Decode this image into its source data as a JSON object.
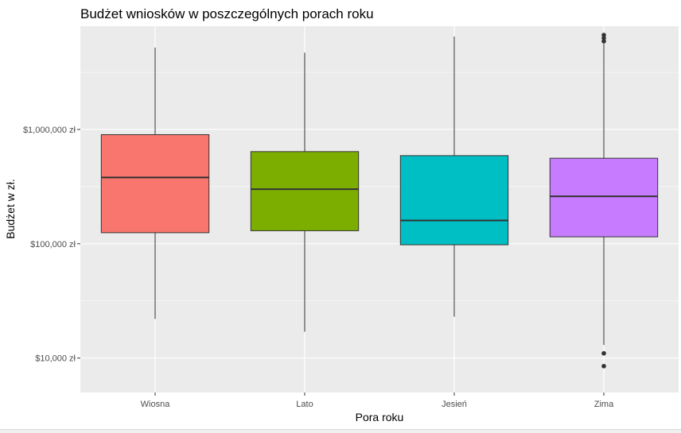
{
  "chart_data": {
    "type": "box",
    "title": "Budżet wniosków w poszczególnych porach roku",
    "xlabel": "Pora roku",
    "ylabel": "Budżet w zł.",
    "y_scale": "log10",
    "ylim": [
      5000,
      8000000
    ],
    "y_ticks": [
      {
        "value": 10000,
        "label": "$10,000 zł"
      },
      {
        "value": 100000,
        "label": "$100,000 zł"
      },
      {
        "value": 1000000,
        "label": "$1,000,000 zł"
      }
    ],
    "grid": true,
    "legend": "none",
    "categories": [
      "Wiosna",
      "Lato",
      "Jesień",
      "Zima"
    ],
    "boxes": [
      {
        "category": "Wiosna",
        "color": "#F8766D",
        "whisker_low": 22000,
        "q1": 125000,
        "median": 380000,
        "q3": 900000,
        "whisker_high": 5200000,
        "outliers": []
      },
      {
        "category": "Lato",
        "color": "#7CAE00",
        "whisker_low": 17000,
        "q1": 130000,
        "median": 300000,
        "q3": 640000,
        "whisker_high": 4700000,
        "outliers": []
      },
      {
        "category": "Jesień",
        "color": "#00BFC4",
        "whisker_low": 23000,
        "q1": 98000,
        "median": 160000,
        "q3": 590000,
        "whisker_high": 6500000,
        "outliers": []
      },
      {
        "category": "Zima",
        "color": "#C77CFF",
        "whisker_low": 13000,
        "q1": 115000,
        "median": 260000,
        "q3": 560000,
        "whisker_high": 5600000,
        "outliers": [
          11000,
          8500,
          5900000,
          6300000,
          6700000
        ]
      }
    ]
  }
}
